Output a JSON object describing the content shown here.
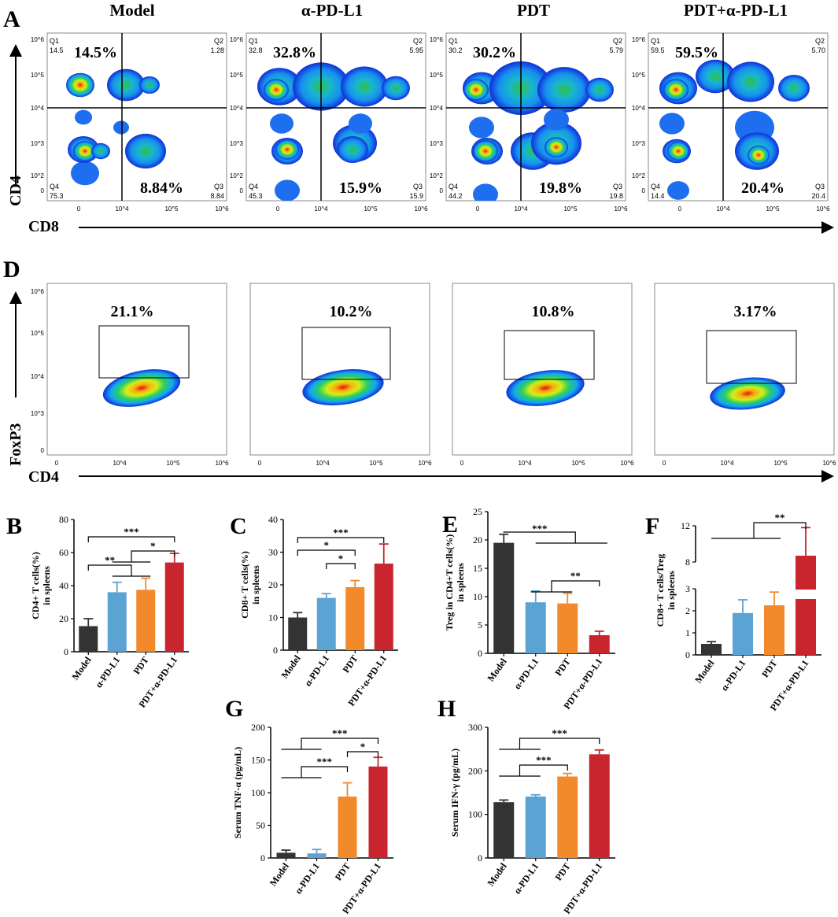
{
  "figure": {
    "panel_letters": {
      "A": "A",
      "D": "D",
      "B": "B",
      "C": "C",
      "E": "E",
      "F": "F",
      "G": "G",
      "H": "H"
    },
    "groups": [
      "Model",
      "α-PD-L1",
      "PDT",
      "PDT+α-PD-L1"
    ],
    "colors": {
      "Model": "#333333",
      "α-PD-L1": "#5ba3d3",
      "PDT": "#f28a2c",
      "PDT+α-PD-L1": "#c9252e"
    }
  },
  "chart_data": [
    {
      "id": "A",
      "type": "flow-cytometry-quadrant",
      "x_axis_label": "CD8",
      "y_axis_label": "CD4",
      "tick_labels": [
        "0",
        "10^2",
        "10^3",
        "10^4",
        "10^5",
        "10^6"
      ],
      "quadrant_names": [
        "Q1",
        "Q2",
        "Q3",
        "Q4"
      ],
      "plots": [
        {
          "title": "Model",
          "q1": "14.5",
          "q2": "1.28",
          "q3": "8.84",
          "q4": "75.3",
          "big_q1": "14.5%",
          "big_q3": "8.84%"
        },
        {
          "title": "α-PD-L1",
          "q1": "32.8",
          "q2": "5.95",
          "q3": "15.9",
          "q4": "45.3",
          "big_q1": "32.8%",
          "big_q3": "15.9%"
        },
        {
          "title": "PDT",
          "q1": "30.2",
          "q2": "5.79",
          "q3": "19.8",
          "q4": "44.2",
          "big_q1": "30.2%",
          "big_q3": "19.8%"
        },
        {
          "title": "PDT+α-PD-L1",
          "q1": "59.5",
          "q2": "5.70",
          "q3": "20.4",
          "q4": "14.4",
          "big_q1": "59.5%",
          "big_q3": "20.4%"
        }
      ]
    },
    {
      "id": "D",
      "type": "flow-cytometry-gate",
      "x_axis_label": "CD4",
      "y_axis_label": "FoxP3",
      "plots": [
        {
          "gate": "21.1%"
        },
        {
          "gate": "10.2%"
        },
        {
          "gate": "10.8%"
        },
        {
          "gate": "3.17%"
        }
      ]
    },
    {
      "id": "B",
      "type": "bar",
      "title": "",
      "ylabel": [
        "CD4+ T cells(%)",
        "in spleens"
      ],
      "categories": [
        "Model",
        "α-PD-L1",
        "PDT",
        "PDT+α-PD-L1"
      ],
      "values": [
        15.5,
        36,
        37.5,
        54
      ],
      "errors": [
        4.5,
        6,
        7,
        5.5
      ],
      "ylim": [
        0,
        80
      ],
      "yticks": [
        0,
        20,
        40,
        60,
        80
      ],
      "significance": [
        {
          "label": "***",
          "between": "Model vs PDT+α-PD-L1"
        },
        {
          "label": "*",
          "between": "α-PD-L1/PDT vs PDT+α-PD-L1"
        },
        {
          "label": "**",
          "between": "Model vs α-PD-L1/PDT"
        }
      ]
    },
    {
      "id": "C",
      "type": "bar",
      "ylabel": [
        "CD8+ T cells(%)",
        "in spleens"
      ],
      "categories": [
        "Model",
        "α-PD-L1",
        "PDT",
        "PDT+α-PD-L1"
      ],
      "values": [
        10,
        16,
        19.3,
        26.5
      ],
      "errors": [
        1.5,
        1.3,
        2,
        6
      ],
      "ylim": [
        0,
        40
      ],
      "yticks": [
        0,
        10,
        20,
        30,
        40
      ],
      "significance": [
        {
          "label": "***",
          "between": "Model vs PDT+α-PD-L1"
        },
        {
          "label": "*",
          "between": "Model vs PDT"
        },
        {
          "label": "*",
          "between": "α-PD-L1 vs PDT"
        }
      ]
    },
    {
      "id": "E",
      "type": "bar",
      "ylabel": [
        "Treg in CD4+T cells(%)",
        "in spleens"
      ],
      "categories": [
        "Model",
        "α-PD-L1",
        "PDT",
        "PDT+α-PD-L1"
      ],
      "values": [
        19.5,
        9,
        8.8,
        3.2
      ],
      "errors": [
        1.5,
        2,
        1.8,
        0.7
      ],
      "ylim": [
        0,
        25
      ],
      "yticks": [
        0,
        5,
        10,
        15,
        20,
        25
      ],
      "significance": [
        {
          "label": "***",
          "between": "Model vs others"
        },
        {
          "label": "**",
          "between": "α-PD-L1/PDT vs PDT+α-PD-L1"
        }
      ]
    },
    {
      "id": "F",
      "type": "bar",
      "ylabel": [
        "CD8+ T cells/Treg",
        "in spleens"
      ],
      "categories": [
        "Model",
        "α-PD-L1",
        "PDT",
        "PDT+α-PD-L1"
      ],
      "values": [
        0.5,
        1.9,
        2.25,
        8.7
      ],
      "errors": [
        0.1,
        0.6,
        0.6,
        3.1
      ],
      "ylim": [
        0,
        12
      ],
      "yticks": [
        0,
        1,
        2,
        3,
        8,
        12
      ],
      "axis_break": [
        3,
        8
      ],
      "significance": [
        {
          "label": "**",
          "between": "Model/α-PD-L1/PDT vs PDT+α-PD-L1"
        }
      ]
    },
    {
      "id": "G",
      "type": "bar",
      "ylabel": [
        "Serum TNF-α (pg/mL)"
      ],
      "categories": [
        "Model",
        "α-PD-L1",
        "PDT",
        "PDT+α-PD-L1"
      ],
      "values": [
        8,
        7,
        94,
        140
      ],
      "errors": [
        4,
        6,
        21,
        14
      ],
      "ylim": [
        0,
        200
      ],
      "yticks": [
        0,
        50,
        100,
        150,
        200
      ],
      "significance": [
        {
          "label": "***",
          "between": "Model/α-PD-L1 vs PDT+α-PD-L1"
        },
        {
          "label": "*",
          "between": "PDT vs PDT+α-PD-L1"
        },
        {
          "label": "***",
          "between": "Model/α-PD-L1 vs PDT"
        }
      ]
    },
    {
      "id": "H",
      "type": "bar",
      "ylabel": [
        "Serum IFN-γ (pg/mL)"
      ],
      "categories": [
        "Model",
        "α-PD-L1",
        "PDT",
        "PDT+α-PD-L1"
      ],
      "values": [
        128,
        141,
        187,
        238
      ],
      "errors": [
        5,
        4,
        7,
        10
      ],
      "ylim": [
        0,
        300
      ],
      "yticks": [
        0,
        100,
        200,
        300
      ],
      "significance": [
        {
          "label": "***",
          "between": "Model/α-PD-L1 vs PDT+α-PD-L1"
        },
        {
          "label": "***",
          "between": "Model/α-PD-L1 vs PDT"
        }
      ]
    }
  ]
}
